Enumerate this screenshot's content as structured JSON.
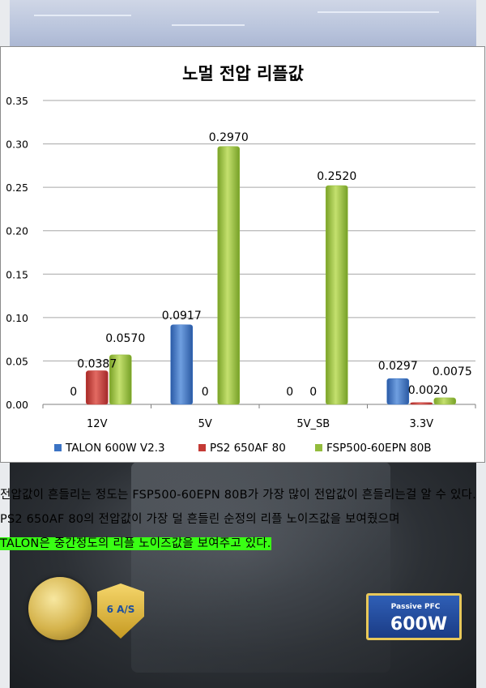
{
  "chart_data": {
    "type": "bar",
    "title": "노멀 전압 리플값",
    "categories": [
      "12V",
      "5V",
      "5V_SB",
      "3.3V"
    ],
    "series": [
      {
        "name": "TALON 600W V2.3",
        "values": [
          0,
          0.0917,
          0,
          0.0297
        ],
        "labels": [
          "0",
          "0.0917",
          "0",
          "0.0297"
        ],
        "color": "#3b73c4"
      },
      {
        "name": "PS2 650AF 80",
        "values": [
          0.0387,
          0,
          0,
          0.002
        ],
        "labels": [
          "0.0387",
          "0",
          "0",
          "0.0020"
        ],
        "color": "#c43a35"
      },
      {
        "name": "FSP500-60EPN 80B",
        "values": [
          0.057,
          0.297,
          0.252,
          0.0075
        ],
        "labels": [
          "0.0570",
          "0.2970",
          "0.2520",
          "0.0075"
        ],
        "color": "#93bc3c"
      }
    ],
    "ylim": [
      0,
      0.35
    ],
    "yticks": [
      "0.00",
      "0.05",
      "0.10",
      "0.15",
      "0.20",
      "0.25",
      "0.30",
      "0.35"
    ],
    "grid": true,
    "legend": "bottom"
  },
  "paragraphs": [
    "전압값이 흔들리는 정도는 FSP500-60EPN 80B가 가장 많이 전압값이 흔들리는걸 알 수 있다.",
    "PS2 650AF 80의 전압값이 가장 덜 흔들린 순정의 리플 노이즈값을 보여줬으며",
    "TALON은 중간정도의 리플 노이즈값을 보여주고 있다."
  ],
  "badges": {
    "as_shield": "6 A/S",
    "pfc": "Passive PFC",
    "pfc_watt": "600W"
  },
  "colors": {
    "grid": "#a6a6a6",
    "highlight": "#39ff14"
  }
}
